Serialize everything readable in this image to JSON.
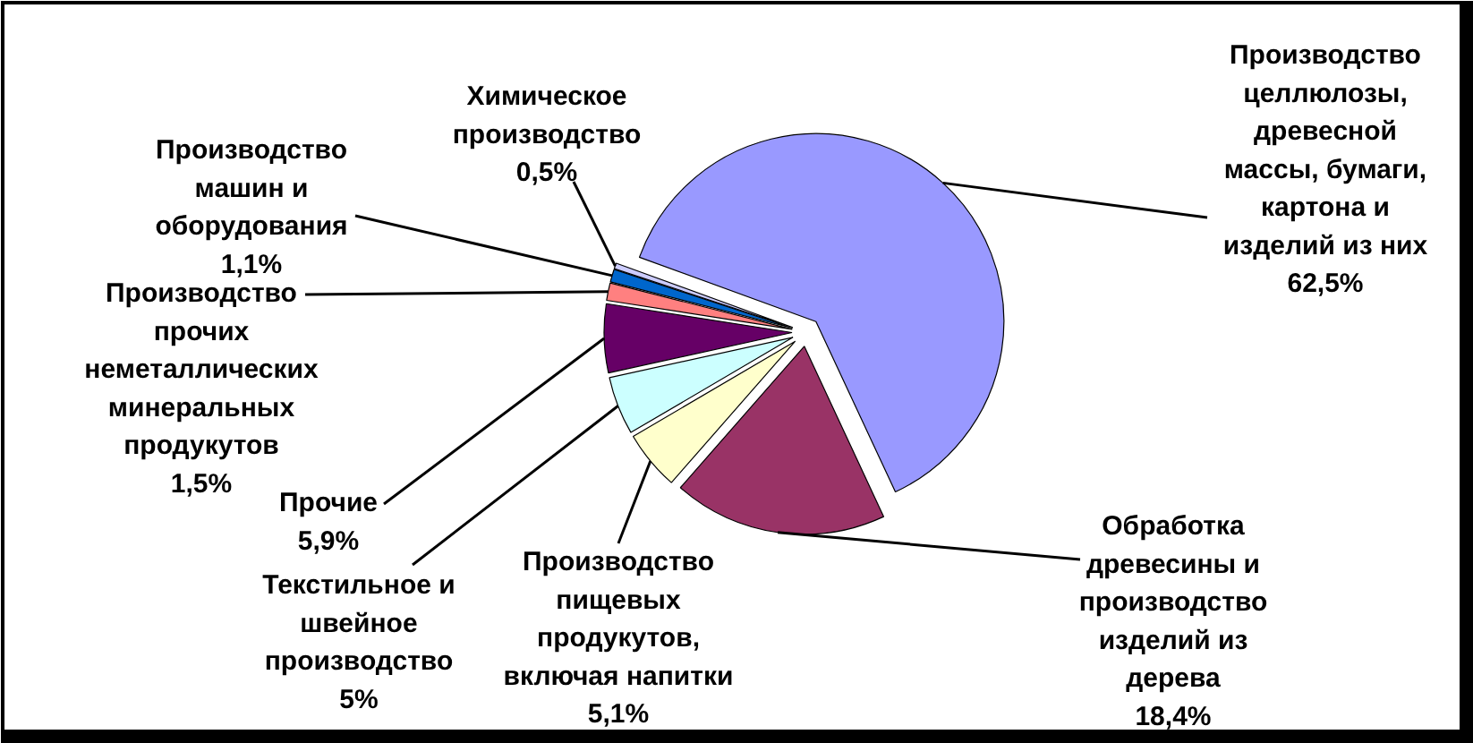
{
  "chart_data": {
    "type": "pie",
    "categories": [
      "Производство целлюлозы, древесной массы, бумаги, картона и изделий из них",
      "Обработка древесины и производство изделий из дерева",
      "Производство пищевых продукутов, включая напитки",
      "Текстильное и швейное производство",
      "Прочие",
      "Производство прочих неметаллических минеральных продукутов",
      "Производство машин и оборудования",
      "Химическое производство"
    ],
    "values": [
      62.5,
      18.4,
      5.1,
      5,
      5.9,
      1.5,
      1.1,
      0.5
    ],
    "colors": [
      "#9999ff",
      "#993366",
      "#ffffcc",
      "#ccffff",
      "#660066",
      "#ff8080",
      "#0066cc",
      "#ccccff"
    ],
    "value_labels": [
      "62,5%",
      "18,4%",
      "5,1%",
      "5%",
      "5,9%",
      "1,5%",
      "1,1%",
      "0,5%"
    ]
  }
}
